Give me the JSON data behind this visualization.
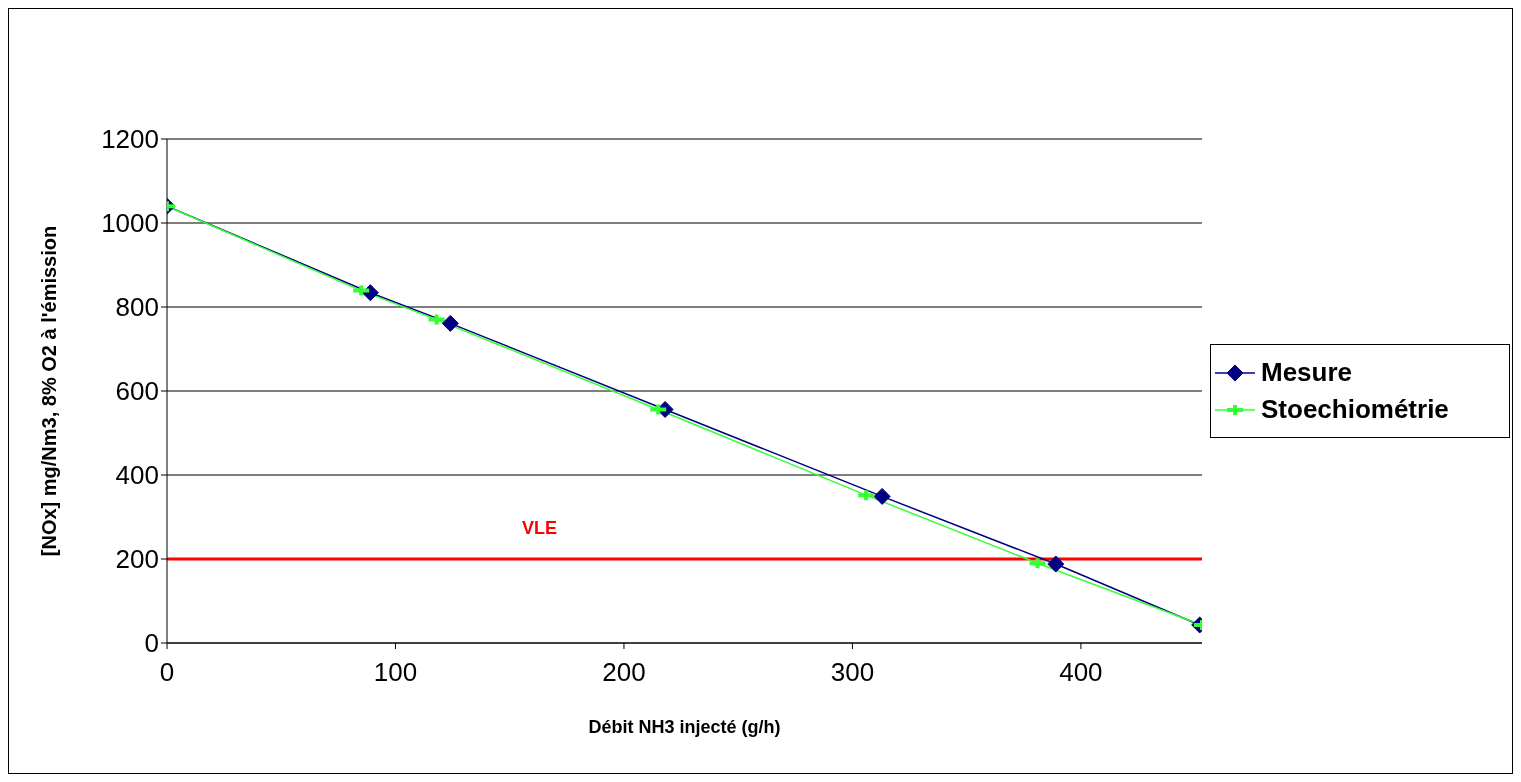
{
  "chart_data": {
    "type": "line",
    "xlabel": "Débit NH3 injecté (g/h)",
    "ylabel": "[NOx] mg/Nm3, 8% O2 à l'émission",
    "series": [
      {
        "name": "Mesure",
        "color": "#000080",
        "marker": "diamond",
        "x": [
          0,
          89,
          124,
          218,
          313,
          389,
          452
        ],
        "values": [
          1040,
          834,
          761,
          556,
          349,
          188,
          43
        ]
      },
      {
        "name": "Stoechiométrie",
        "color": "#33ff33",
        "marker": "cross",
        "x": [
          0,
          85,
          118,
          215,
          306,
          381,
          453
        ],
        "values": [
          1040,
          839,
          770,
          556,
          352,
          190,
          43
        ]
      }
    ],
    "xlim": [
      0,
      453
    ],
    "xticks": [
      0,
      100,
      200,
      300,
      400
    ],
    "ylim": [
      0,
      1200
    ],
    "yticks": [
      0,
      200,
      400,
      600,
      800,
      1000,
      1200
    ],
    "grid": "y",
    "legend": "right",
    "ref_lines": [
      {
        "axis": "y",
        "value": 200,
        "label": "VLE",
        "color": "#ff0000"
      }
    ]
  }
}
